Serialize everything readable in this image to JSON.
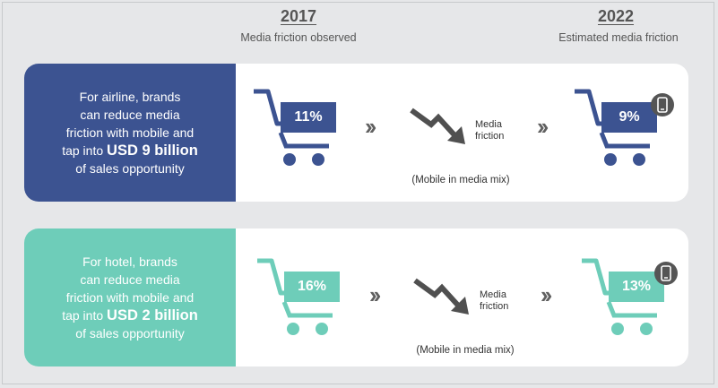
{
  "header": {
    "year_2017": "2017",
    "sub_2017": "Media friction observed",
    "year_2022": "2022",
    "sub_2022": "Estimated media friction"
  },
  "colors": {
    "airline": "#3c5391",
    "hotel": "#6ecdb9",
    "arrow": "#505050"
  },
  "airline": {
    "text_lines": [
      "For airline, brands",
      "can reduce media",
      "friction with mobile and"
    ],
    "text_pre": "tap into ",
    "text_bold": "USD 9 billion",
    "text_last": "of sales opportunity",
    "pct_2017": "11%",
    "pct_2022": "9%",
    "friction_label_1": "Media",
    "friction_label_2": "friction",
    "mix_label": "(Mobile in media mix)"
  },
  "hotel": {
    "text_lines": [
      "For hotel, brands",
      "can reduce media",
      "friction with mobile and"
    ],
    "text_pre": "tap into ",
    "text_bold": "USD 2 billion",
    "text_last": "of sales opportunity",
    "pct_2017": "16%",
    "pct_2022": "13%",
    "friction_label_1": "Media",
    "friction_label_2": "friction",
    "mix_label": "(Mobile in media mix)"
  },
  "icons": {
    "cart": "shopping-cart-icon",
    "chevrons": "double-chevron-right-icon",
    "trend": "trend-down-arrow-icon",
    "phone": "mobile-phone-icon"
  }
}
